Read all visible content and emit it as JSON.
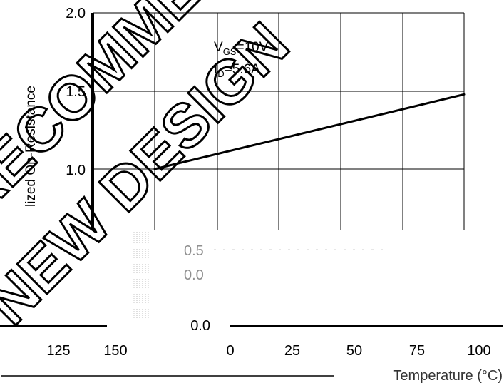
{
  "chart_data": {
    "type": "line",
    "series": [
      {
        "x": [
          25,
          150
        ],
        "y": [
          1.0,
          1.48
        ]
      }
    ],
    "ylabel": "lized On-Resistance",
    "ylim": [
      0.5,
      2.0
    ],
    "y_tick_labels": [
      "2.0",
      "1.5",
      "1.0"
    ],
    "grid": true,
    "annotations": [
      {
        "main": "V",
        "sub": "GS",
        "rest": "=10V"
      },
      {
        "main": "I",
        "sub": "D",
        "rest": "=5.6A"
      }
    ]
  },
  "watermark": {
    "line1": "NEW DESIGN",
    "line2": "RECOMMENDED"
  },
  "lower_panel": {
    "left_x_ticks": [
      "125",
      "150"
    ],
    "right_y_tick": "0.0",
    "right_x_ticks": [
      "0",
      "25",
      "50",
      "75",
      "100"
    ],
    "right_x_label": "Temperature (°C)",
    "faded_labels": [
      "0.5",
      "0.0"
    ]
  }
}
